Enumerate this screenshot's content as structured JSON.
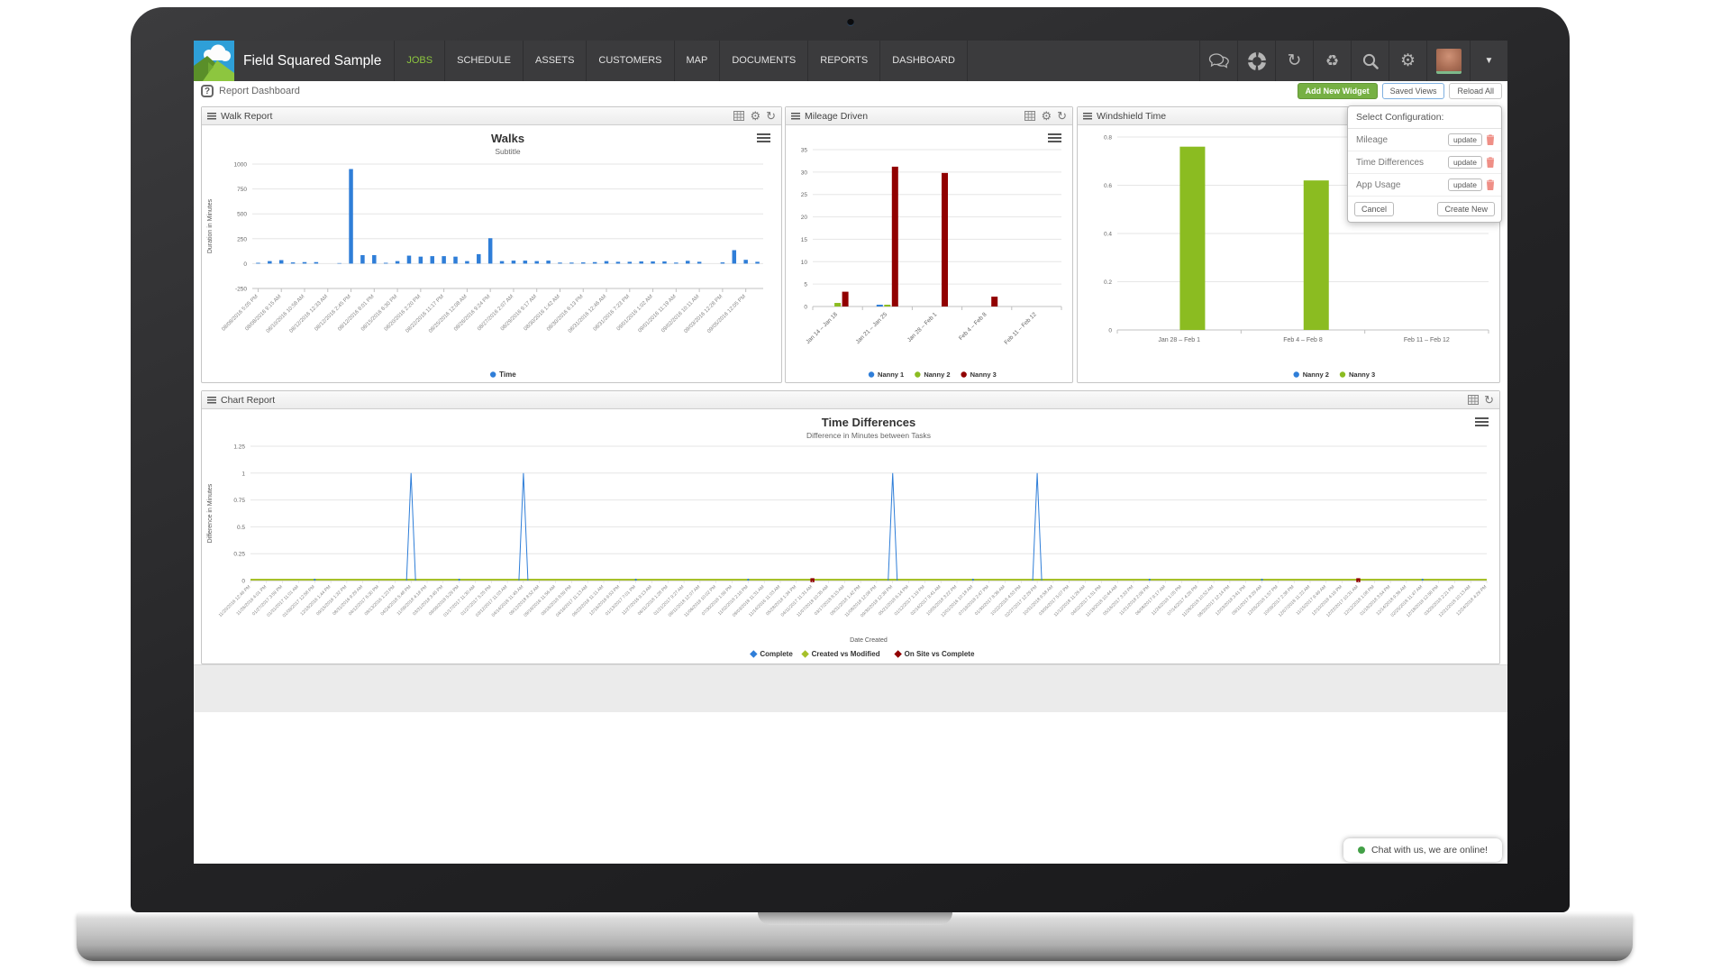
{
  "colors": {
    "nav_bg": "#3b3b3d",
    "brand_green": "#8dc63f",
    "accent_green": "#76b043",
    "series_blue": "#2f7ed8",
    "series_green": "#8bbc21",
    "series_maroon": "#910000",
    "series_yellowgreen": "#a6c02a",
    "chat_online_dot": "#43a047"
  },
  "icon_glyphs": {
    "gear": "⚙",
    "refresh": "↻",
    "recycle": "♻",
    "caret": "▼"
  },
  "nav": {
    "brand": "Field Squared Sample",
    "items": [
      {
        "label": "JOBS",
        "active": true
      },
      {
        "label": "SCHEDULE"
      },
      {
        "label": "ASSETS"
      },
      {
        "label": "CUSTOMERS"
      },
      {
        "label": "MAP"
      },
      {
        "label": "DOCUMENTS"
      },
      {
        "label": "REPORTS"
      },
      {
        "label": "DASHBOARD"
      }
    ],
    "icons": [
      "comments",
      "help-ring",
      "refresh",
      "recycle",
      "search",
      "settings",
      "avatar",
      "dropdown-caret"
    ]
  },
  "breadcrumb": {
    "icon": "?",
    "label": "Report Dashboard"
  },
  "toolbar": {
    "add_new_widget": "Add New Widget",
    "saved_views": "Saved Views",
    "reload_all": "Reload All"
  },
  "config_popup": {
    "title": "Select Configuration:",
    "rows": [
      {
        "label": "Mileage",
        "action": "update"
      },
      {
        "label": "Time Differences",
        "action": "update"
      },
      {
        "label": "App Usage",
        "action": "update"
      }
    ],
    "cancel": "Cancel",
    "create_new": "Create New"
  },
  "panels": {
    "walk": {
      "title": "Walk Report",
      "header_icons": [
        "table",
        "gear",
        "refresh"
      ]
    },
    "mileage": {
      "title": "Mileage Driven",
      "header_icons": [
        "table",
        "gear",
        "refresh"
      ]
    },
    "windshield": {
      "title": "Windshield Time",
      "header_icons": [
        "table",
        "gear",
        "refresh"
      ]
    },
    "chart": {
      "title": "Chart Report",
      "header_icons": [
        "table",
        "refresh"
      ]
    }
  },
  "chat": {
    "label": "Chat with us, we are online!"
  },
  "chart_data": [
    {
      "id": "walks",
      "type": "bar",
      "title": "Walks",
      "subtitle": "Subtitle",
      "ylabel": "Duration in Minutes",
      "ylim": [
        -250,
        1000
      ],
      "ytick_step": 250,
      "label_every": 2,
      "categories": [
        "08/08/2016 5:05 PM",
        "08/08/2016 9:15 AM",
        "08/10/2016 10:58 AM",
        "08/12/2016 12:33 AM",
        "08/12/2016 2:45 PM",
        "08/12/2016 8:01 PM",
        "08/15/2016 6:30 PM",
        "08/20/2016 2:20 PM",
        "08/22/2016 11:17 PM",
        "08/25/2016 12:08 AM",
        "08/26/2016 9:24 PM",
        "08/27/2016 2:07 AM",
        "08/29/2016 9:17 AM",
        "08/30/2016 1:42 AM",
        "08/30/2016 6:13 PM",
        "08/31/2016 12:46 AM",
        "08/31/2016 7:23 PM",
        "09/01/2016 1:02 AM",
        "09/01/2016 11:19 AM",
        "09/02/2016 10:11 AM",
        "09/03/2016 12:28 PM",
        "09/05/2016 12:05 PM"
      ],
      "series": [
        {
          "name": "Time",
          "color": "#2f7ed8",
          "values": [
            8,
            25,
            35,
            12,
            15,
            15,
            0,
            5,
            950,
            85,
            85,
            8,
            25,
            80,
            70,
            75,
            75,
            70,
            25,
            95,
            255,
            25,
            30,
            30,
            25,
            30,
            10,
            10,
            12,
            15,
            25,
            18,
            18,
            22,
            22,
            22,
            10,
            28,
            18,
            0,
            12,
            135,
            38,
            18
          ]
        }
      ],
      "legend_position": "bottom"
    },
    {
      "id": "mileage",
      "type": "bar",
      "ylim": [
        0,
        35
      ],
      "ytick_step": 5,
      "categories": [
        "Jan 14 – Jan 18",
        "Jan 21 – Jan 25",
        "Jan 28 – Feb 1",
        "Feb 4 – Feb 8",
        "Feb 11 – Feb 12"
      ],
      "series": [
        {
          "name": "Nanny 1",
          "color": "#2f7ed8",
          "values": [
            0,
            0.4,
            0,
            0,
            0
          ]
        },
        {
          "name": "Nanny 2",
          "color": "#8bbc21",
          "values": [
            0.8,
            0.4,
            0,
            0,
            0
          ]
        },
        {
          "name": "Nanny 3",
          "color": "#910000",
          "values": [
            3.3,
            31.2,
            29.8,
            2.2,
            0
          ]
        }
      ],
      "legend_position": "bottom"
    },
    {
      "id": "windshield",
      "type": "bar",
      "ylim": [
        0,
        0.8
      ],
      "ytick_step": 0.2,
      "categories": [
        "Jan 28 – Feb 1",
        "Feb 4 – Feb 8",
        "Feb 11 – Feb 12"
      ],
      "series": [
        {
          "name": "Nanny 2",
          "color": "#2f7ed8",
          "values": [
            0,
            0,
            0
          ]
        },
        {
          "name": "Nanny 3",
          "color": "#8bbc21",
          "values": [
            0.76,
            0.62,
            0
          ]
        }
      ],
      "legend_position": "bottom"
    },
    {
      "id": "timediff",
      "type": "line",
      "title": "Time Differences",
      "subtitle": "Difference in Minutes between Tasks",
      "xlabel": "Date Created",
      "ylabel": "Difference in Minutes",
      "ylim": [
        0,
        1.25
      ],
      "ytick_step": 0.25,
      "categories": [
        "11/20/2016 12:46 PM",
        "11/26/2016 4:01 PM",
        "01/27/2017 3:59 PM",
        "01/31/2017 11:01 AM",
        "01/09/2017 12:58 PM",
        "12/18/2016 1:44 PM",
        "09/15/2016 1:32 PM",
        "08/31/2016 9:29 AM",
        "04/12/2017 6:30 PM",
        "08/13/2016 1:23 PM",
        "04/24/2018 5:48 PM",
        "11/09/2018 4:18 PM",
        "03/31/2018 3:45 PM",
        "09/09/2018 5:29 PM",
        "01/17/2017 11:30 AM",
        "01/27/2017 5:25 PM",
        "03/12/2017 11:03 AM",
        "04/14/2018 11:45 AM",
        "09/12/2018 8:52 AM",
        "09/18/2016 11:56 AM",
        "09/16/2018 8:59 PM",
        "04/16/2017 11:13 AM",
        "06/23/2018 11:11 AM",
        "12/16/2016 9:53 PM",
        "01/13/2017 7:01 PM",
        "11/27/2016 9:13 AM",
        "06/11/2018 1:28 PM",
        "01/21/2017 9:27 AM",
        "08/11/2018 12:07 AM",
        "11/06/2018 10:02 PM",
        "07/30/2018 1:59 PM",
        "11/02/2018 2:16 PM",
        "09/03/2018 11:31 AM",
        "11/14/2016 11:03 AM",
        "05/28/2018 1:34 PM",
        "04/11/2017 11:31 AM",
        "11/07/2018 10:35 AM",
        "03/17/2018 8:15 AM",
        "08/31/2018 1:42 PM",
        "11/08/2018 12:08 PM",
        "09/30/2018 12:38 PM",
        "05/21/2018 6:14 PM",
        "01/12/2017 1:19 PM",
        "02/14/2017 9:41 AM",
        "10/05/2018 3:22 PM",
        "12/01/2016 10:18 AM",
        "07/19/2018 2:47 PM",
        "01/30/2017 8:36 AM",
        "10/22/2018 4:53 PM",
        "02/27/2017 12:29 PM",
        "10/31/2018 9:58 AM",
        "03/05/2017 5:07 PM",
        "11/12/2018 11:26 AM",
        "04/02/2017 1:51 PM",
        "11/19/2018 10:44 AM",
        "05/16/2017 3:33 PM",
        "11/21/2018 2:09 PM",
        "06/08/2017 9:17 AM",
        "11/24/2018 1:05 PM",
        "07/14/2017 4:26 PM",
        "11/28/2018 10:52 AM",
        "08/20/2017 12:14 PM",
        "12/03/2018 3:41 PM",
        "09/11/2017 8:29 AM",
        "12/05/2018 1:57 PM",
        "10/09/2017 2:38 PM",
        "12/07/2018 11:22 AM",
        "11/15/2017 9:49 AM",
        "12/10/2018 4:16 PM",
        "12/22/2017 10:31 AM",
        "12/12/2018 1:08 PM",
        "01/18/2018 3:54 PM",
        "12/14/2018 9:36 AM",
        "02/25/2018 11:47 AM",
        "12/18/2018 12:58 PM",
        "03/29/2018 2:21 PM",
        "12/21/2018 10:13 AM",
        "12/24/2018 4:29 PM"
      ],
      "series": [
        {
          "name": "Complete",
          "color": "#2f7ed8",
          "values": [
            0,
            0,
            0,
            0,
            0,
            0,
            0,
            0,
            0,
            0,
            1,
            0,
            0,
            0,
            0,
            0,
            0,
            1,
            0,
            0,
            0,
            0,
            0,
            0,
            0,
            0,
            0,
            0,
            0,
            0,
            0,
            0,
            0,
            0,
            0,
            0,
            0,
            0,
            0,
            0,
            1,
            0,
            0,
            0,
            0,
            0,
            0,
            0,
            0,
            1,
            0,
            0,
            0,
            0,
            0,
            0,
            0,
            0,
            0,
            0,
            0,
            0,
            0,
            0,
            0,
            0,
            0,
            0,
            0,
            0,
            0,
            0,
            0,
            0,
            0,
            0,
            0,
            0
          ],
          "dot_indices": [
            4,
            13,
            24,
            31,
            45,
            56,
            63,
            73
          ]
        },
        {
          "name": "Created vs Modified",
          "color": "#a6c02a",
          "constant_value": 0
        },
        {
          "name": "On Site vs Complete",
          "color": "#910000",
          "marker_value": 0,
          "marker_indices": [
            35,
            69
          ]
        }
      ],
      "legend_position": "bottom"
    }
  ]
}
